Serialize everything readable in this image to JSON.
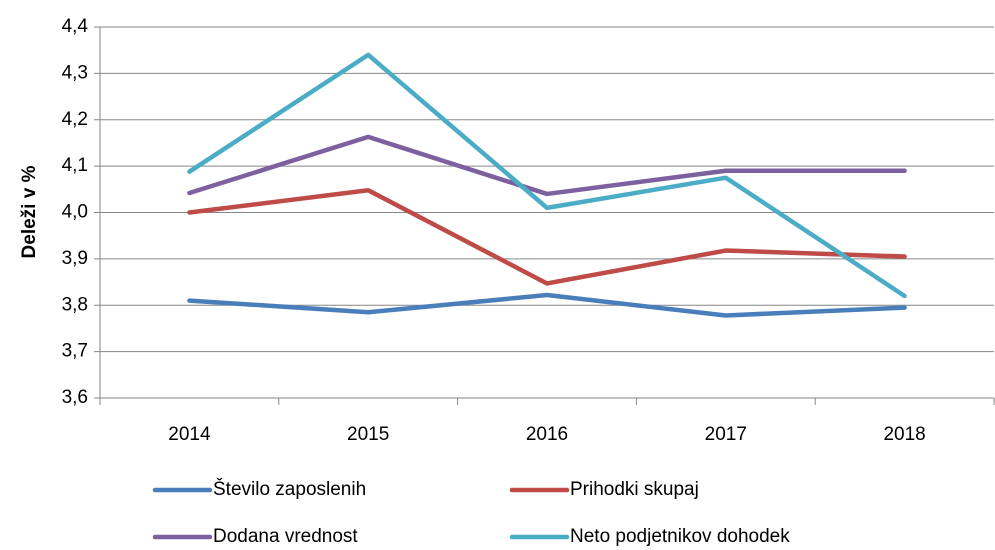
{
  "chart_data": {
    "type": "line",
    "y_label": "Deleži v %",
    "categories": [
      "2014",
      "2015",
      "2016",
      "2017",
      "2018"
    ],
    "series": [
      {
        "name": "Število zaposlenih",
        "color": "#4a7ebb",
        "values": [
          3.81,
          3.785,
          3.822,
          3.778,
          3.795
        ]
      },
      {
        "name": "Prihodki skupaj",
        "color": "#be4b48",
        "values": [
          4.0,
          4.048,
          3.847,
          3.918,
          3.905
        ]
      },
      {
        "name": "Dodana vrednost",
        "color": "#7d60a0",
        "values": [
          4.042,
          4.163,
          4.04,
          4.09,
          4.09
        ]
      },
      {
        "name": "Neto podjetnikov dohodek",
        "color": "#4bacc6",
        "values": [
          4.088,
          4.34,
          4.01,
          4.075,
          3.82
        ]
      }
    ],
    "ylim": [
      3.6,
      4.4
    ],
    "yticks": [
      {
        "value": 3.6,
        "label": "3,6"
      },
      {
        "value": 3.7,
        "label": "3,7"
      },
      {
        "value": 3.8,
        "label": "3,8"
      },
      {
        "value": 3.9,
        "label": "3,9"
      },
      {
        "value": 4.0,
        "label": "4,0"
      },
      {
        "value": 4.1,
        "label": "4,1"
      },
      {
        "value": 4.2,
        "label": "4,2"
      },
      {
        "value": 4.3,
        "label": "4,3"
      },
      {
        "value": 4.4,
        "label": "4,4"
      }
    ],
    "grid": true
  }
}
